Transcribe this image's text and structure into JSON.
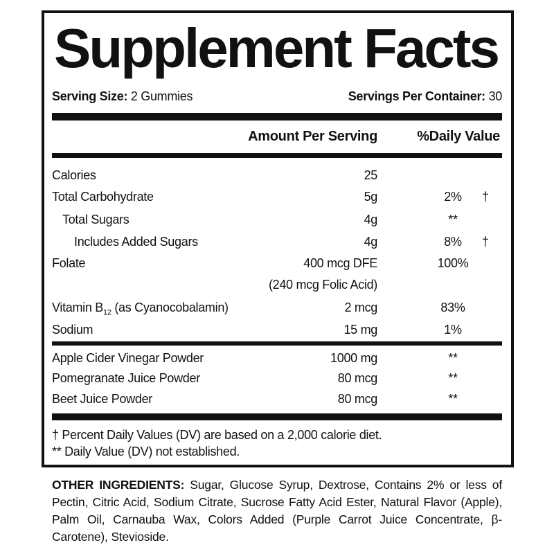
{
  "title": "Supplement Facts",
  "serving_size_label": "Serving Size:",
  "serving_size_value": "2 Gummies",
  "servings_per_container_label": "Servings Per Container:",
  "servings_per_container_value": "30",
  "header": {
    "amount": "Amount Per Serving",
    "dv": "%Daily Value"
  },
  "nutrients": [
    {
      "name": "Calories",
      "amount": "25",
      "dv": "",
      "mark": ""
    },
    {
      "name": "Total Carbohydrate",
      "amount": "5g",
      "dv": "2%",
      "mark": "†"
    },
    {
      "name": "Total Sugars",
      "amount": "4g",
      "dv": "**",
      "mark": ""
    },
    {
      "name": "Includes Added Sugars",
      "amount": "4g",
      "dv": "8%",
      "mark": "†"
    },
    {
      "name": "Folate",
      "amount": "400 mcg DFE",
      "amount_note": "(240 mcg Folic Acid)",
      "dv": "100%",
      "mark": ""
    },
    {
      "name_prefix": "Vitamin B",
      "name_sub": "12",
      "name_suffix": " (as Cyanocobalamin)",
      "amount": "2 mcg",
      "dv": "83%",
      "mark": ""
    },
    {
      "name": "Sodium",
      "amount": "15 mg",
      "dv": "1%",
      "mark": ""
    }
  ],
  "ingredients": [
    {
      "name": "Apple Cider Vinegar Powder",
      "amount": "1000 mg",
      "dv": "**"
    },
    {
      "name": "Pomegranate Juice Powder",
      "amount": "80 mcg",
      "dv": "**"
    },
    {
      "name": "Beet Juice Powder",
      "amount": "80 mcg",
      "dv": "**"
    }
  ],
  "footnotes": [
    "† Percent Daily Values (DV) are based on a 2,000 calorie diet.",
    "** Daily Value (DV) not established."
  ],
  "other_ingredients_label": "OTHER INGREDIENTS:",
  "other_ingredients_text": " Sugar, Glucose Syrup, Dextrose, Contains 2% or less of Pectin, Citric Acid, Sodium Citrate, Sucrose Fatty Acid Ester, Natural Flavor (Apple), Palm Oil, Carnauba Wax, Colors Added (Purple Carrot Juice Concentrate, β-Carotene), Stevioside."
}
